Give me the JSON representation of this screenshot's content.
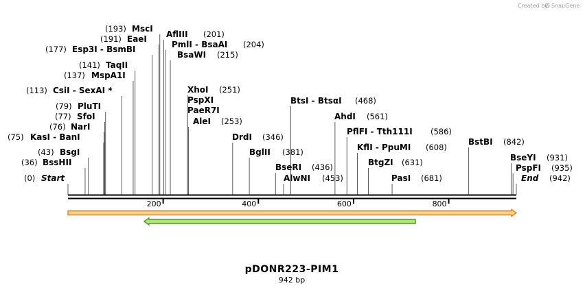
{
  "credit": {
    "created_by": "Created by",
    "brand": "SnapGene"
  },
  "map": {
    "name": "pDONR223-PIM1",
    "length_label": "942 bp",
    "length": 942,
    "ticks": [
      "200",
      "400",
      "600",
      "800"
    ]
  },
  "sites": [
    {
      "name": "Start",
      "pos": "(0)",
      "bp": 0,
      "special": true
    },
    {
      "name": "BssHII",
      "pos": "(36)",
      "bp": 36
    },
    {
      "name": "BsgI",
      "pos": "(43)",
      "bp": 43
    },
    {
      "name": "KasI  - BanI",
      "pos": "(75)",
      "bp": 75
    },
    {
      "name": "NarI",
      "pos": "(76)",
      "bp": 76
    },
    {
      "name": "SfoI",
      "pos": "(77)",
      "bp": 77
    },
    {
      "name": "PluTI",
      "pos": "(79)",
      "bp": 79
    },
    {
      "name": "CsiI  - SexAI *",
      "pos": "(113)",
      "bp": 113
    },
    {
      "name": "MspA1I",
      "pos": "(137)",
      "bp": 137
    },
    {
      "name": "TaqII",
      "pos": "(141)",
      "bp": 141
    },
    {
      "name": "Esp3I  - BsmBI",
      "pos": "(177)",
      "bp": 177
    },
    {
      "name": "EaeI",
      "pos": "(191)",
      "bp": 191
    },
    {
      "name": "MscI",
      "pos": "(193)",
      "bp": 193
    },
    {
      "name": "AflIII",
      "pos": "(201)",
      "bp": 201
    },
    {
      "name": "PmlI  - BsaAI",
      "pos": "(204)",
      "bp": 204
    },
    {
      "name": "BsaWI",
      "pos": "(215)",
      "bp": 215
    },
    {
      "name": "XhoI",
      "pos": "(251)",
      "bp": 251
    },
    {
      "name": "PspXI",
      "pos": "",
      "bp": 251
    },
    {
      "name": "PaeR7I",
      "pos": "",
      "bp": 251
    },
    {
      "name": "AleI",
      "pos": "(253)",
      "bp": 253
    },
    {
      "name": "DrdI",
      "pos": "(346)",
      "bp": 346
    },
    {
      "name": "BglII",
      "pos": "(381)",
      "bp": 381
    },
    {
      "name": "BseRI",
      "pos": "(436)",
      "bp": 436
    },
    {
      "name": "AlwNI",
      "pos": "(453)",
      "bp": 453
    },
    {
      "name": "BtsI  - BtsαI",
      "pos": "(468)",
      "bp": 468
    },
    {
      "name": "AhdI",
      "pos": "(561)",
      "bp": 561
    },
    {
      "name": "PflFI  - Tth111I",
      "pos": "(586)",
      "bp": 586
    },
    {
      "name": "KflI  - PpuMI",
      "pos": "(608)",
      "bp": 608
    },
    {
      "name": "BtgZI",
      "pos": "(631)",
      "bp": 631
    },
    {
      "name": "PasI",
      "pos": "(681)",
      "bp": 681
    },
    {
      "name": "BstBI",
      "pos": "(842)",
      "bp": 842
    },
    {
      "name": "BseYI",
      "pos": "(931)",
      "bp": 931
    },
    {
      "name": "PspFI",
      "pos": "(935)",
      "bp": 935
    },
    {
      "name": "End",
      "pos": "(942)",
      "bp": 942,
      "special": true
    }
  ],
  "features": [
    {
      "name": "orange-feature",
      "start_bp": 0,
      "end_bp": 942,
      "direction": "forward",
      "fill": "#f8cf8f",
      "stroke": "#d7891f"
    },
    {
      "name": "green-feature",
      "start_bp": 160,
      "end_bp": 730,
      "direction": "reverse",
      "fill": "#b4e27f",
      "stroke": "#4f9a25"
    }
  ],
  "colors": {
    "backbone": "#000000",
    "site_line": "#333333"
  }
}
